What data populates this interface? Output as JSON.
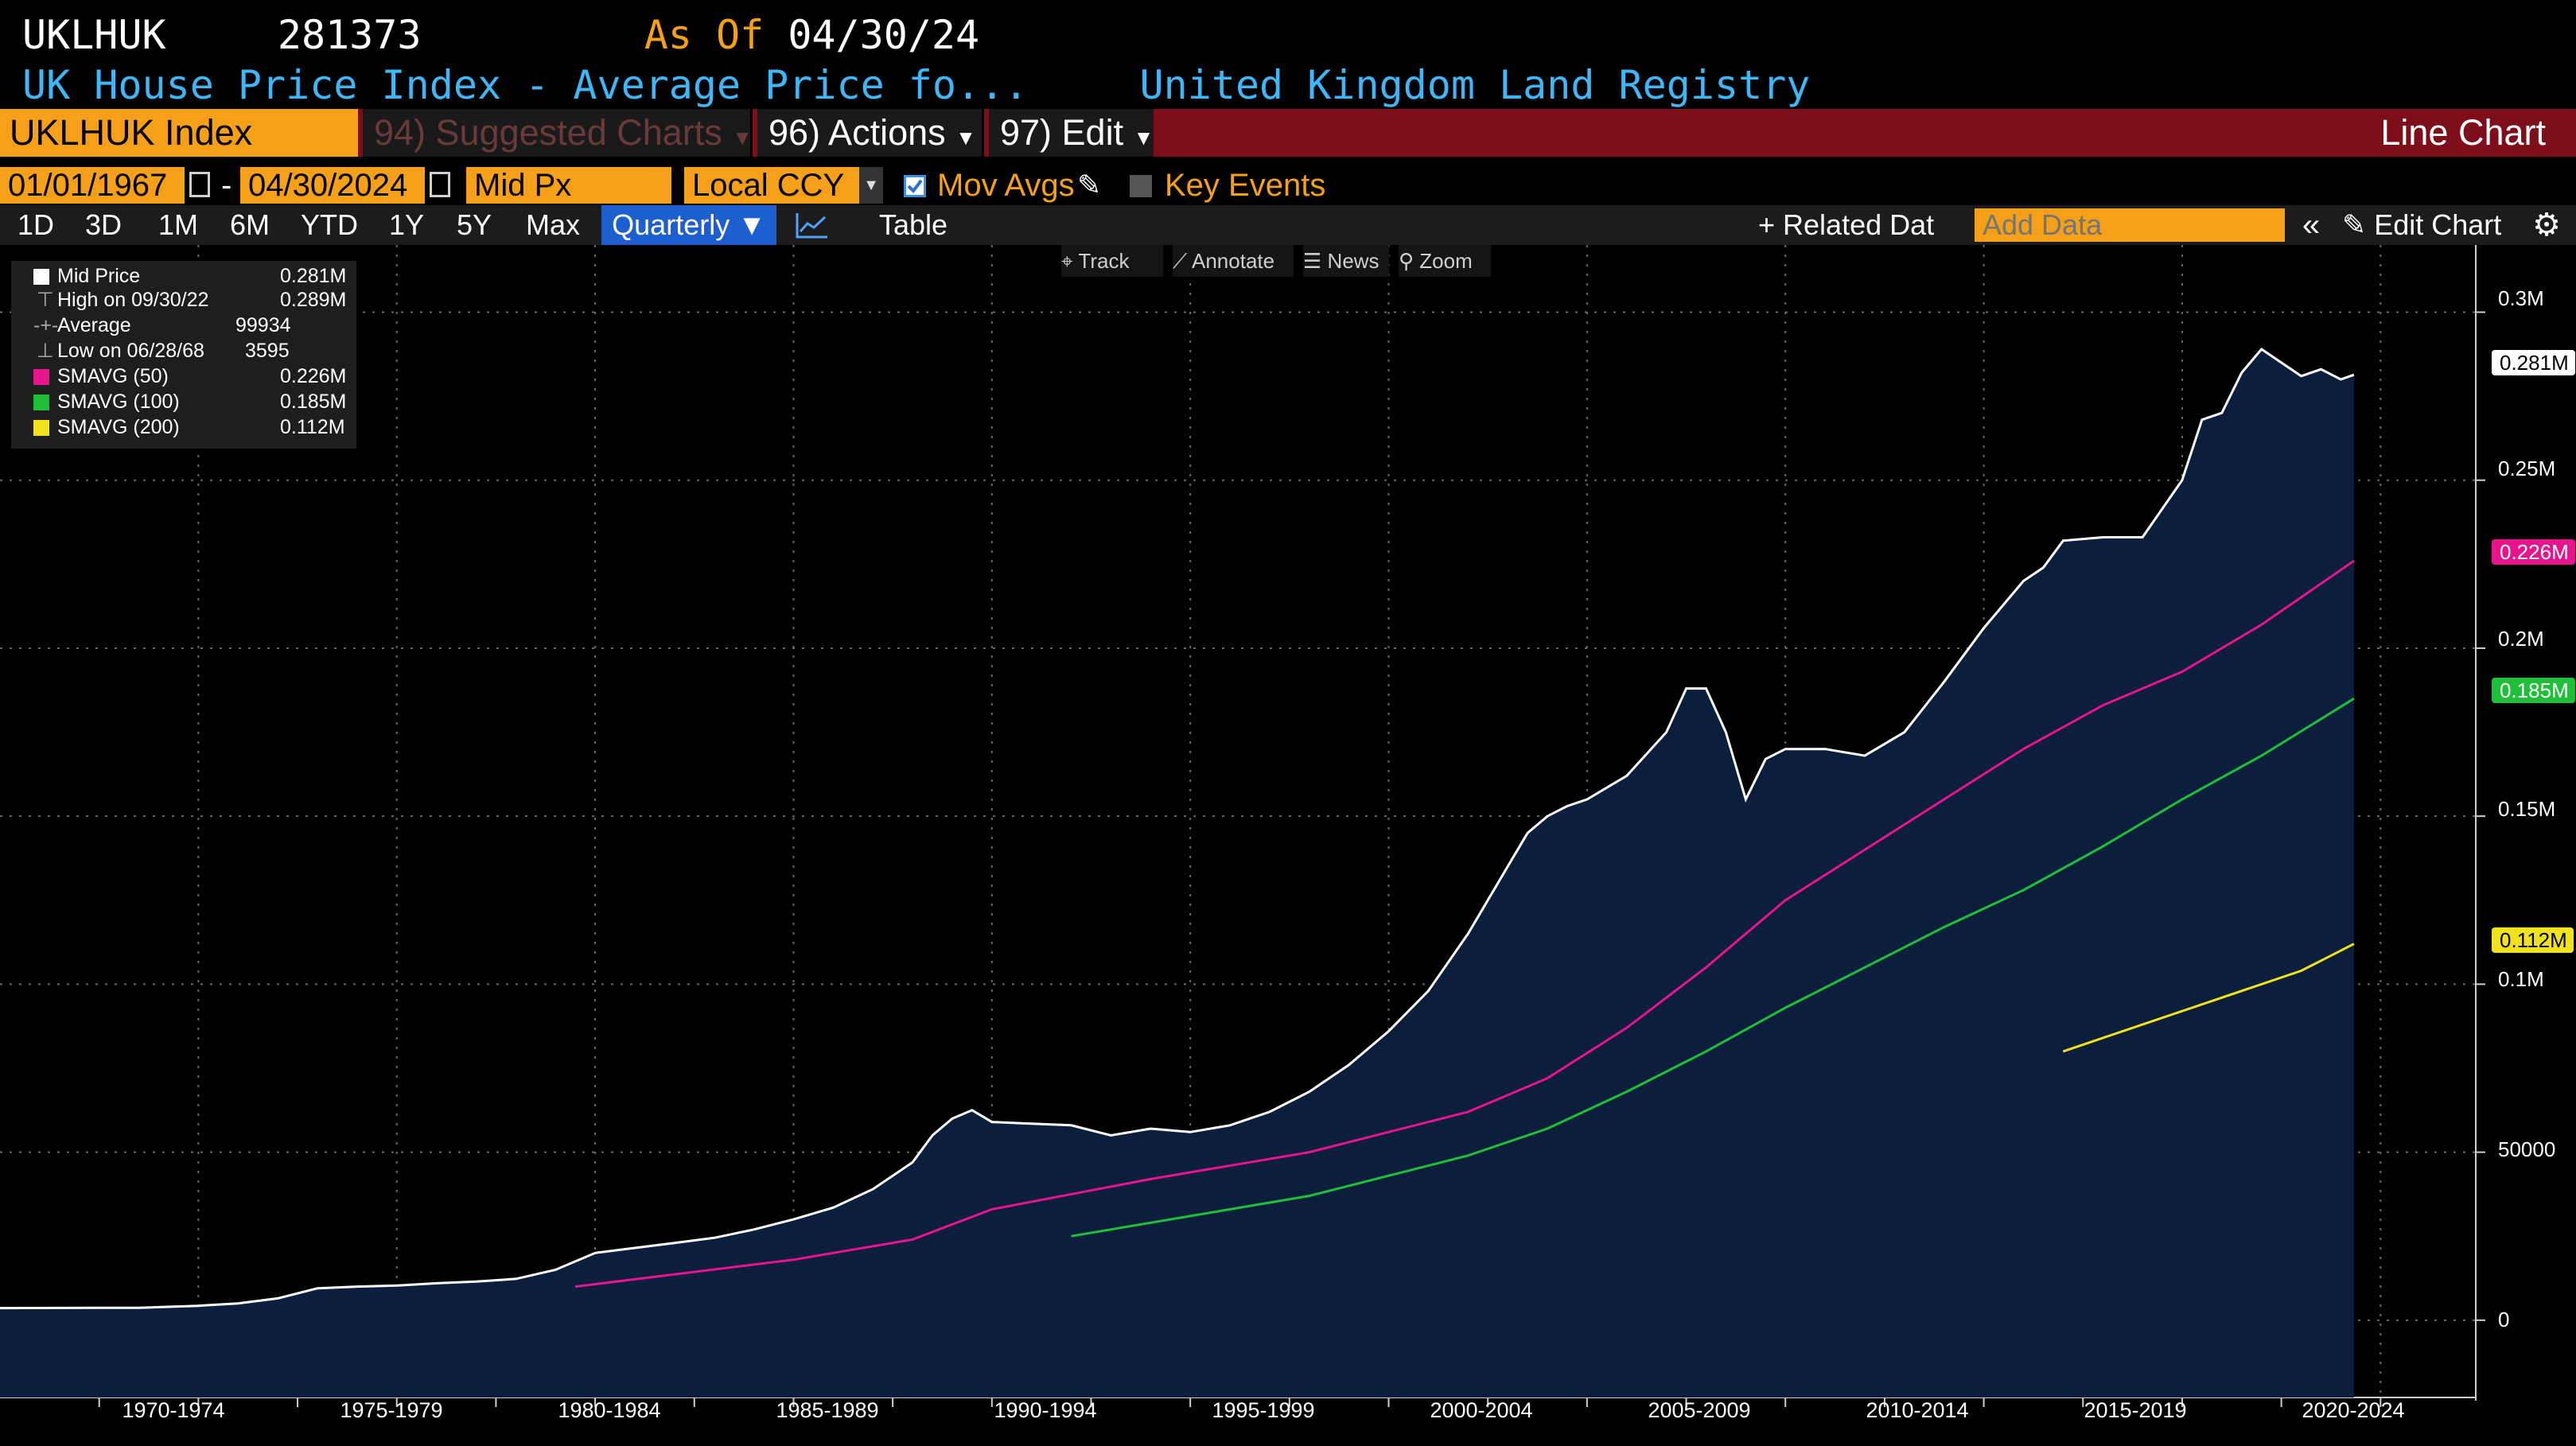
{
  "header": {
    "ticker": "UKLHUK",
    "last_value": "281373",
    "as_of_label": "As Of",
    "as_of_date": "04/30/24",
    "description": "UK House Price Index - Average Price fo...",
    "source": "United Kingdom Land Registry"
  },
  "command_bar": {
    "security": "UKLHUK Index",
    "suggested": "94) Suggested Charts",
    "actions": "96) Actions",
    "edit": "97) Edit",
    "chart_type": "Line Chart"
  },
  "controls": {
    "start_date": "01/01/1967",
    "dash": "-",
    "end_date": "04/30/2024",
    "field": "Mid Px",
    "currency": "Local CCY",
    "mov_avgs": "Mov Avgs",
    "key_events": "Key Events"
  },
  "range_bar": {
    "ranges": [
      "1D",
      "3D",
      "1M",
      "6M",
      "YTD",
      "1Y",
      "5Y",
      "Max"
    ],
    "period": "Quarterly ▼",
    "table": "Table",
    "related": "+ Related Dat",
    "add_data_placeholder": "Add Data",
    "edit_chart": "Edit Chart"
  },
  "mini_toolbar": {
    "track": "Track",
    "annotate": "Annotate",
    "news": "News",
    "zoom": "Zoom"
  },
  "legend": {
    "rows": [
      {
        "label": "Mid Price",
        "value": "0.281M"
      },
      {
        "label": "High on 09/30/22",
        "value": "0.289M"
      },
      {
        "label": "Average",
        "value": "99934"
      },
      {
        "label": "Low on 06/28/68",
        "value": "3595"
      },
      {
        "label": "SMAVG (50)",
        "value": "0.226M"
      },
      {
        "label": "SMAVG (100)",
        "value": "0.185M"
      },
      {
        "label": "SMAVG (200)",
        "value": "0.112M"
      }
    ]
  },
  "colors": {
    "price": "#ffffff",
    "area_fill": "#0b1f3d",
    "smavg50": "#e8148c",
    "smavg100": "#1fbf3a",
    "smavg200": "#f0e21c",
    "accent": "#f5a018",
    "command_bar": "#7e0f1a"
  },
  "chart_data": {
    "type": "line",
    "y_ticks": [
      "0.3M",
      "0.25M",
      "0.2M",
      "0.15M",
      "0.1M",
      "50000",
      "0"
    ],
    "x_ticks": [
      "1970-1974",
      "1975-1979",
      "1980-1984",
      "1985-1989",
      "1990-1994",
      "1995-1999",
      "2000-2004",
      "2005-2009",
      "2010-2014",
      "2015-2019",
      "2020-2024"
    ],
    "ylim": [
      -23000,
      320000
    ],
    "xlim": [
      1965.0,
      2027.4
    ],
    "grid": true,
    "legend_position": "top-left",
    "end_tags": [
      {
        "series": "price",
        "label": "0.281M",
        "value": 281373
      },
      {
        "series": "smavg50",
        "label": "0.226M",
        "value": 226000
      },
      {
        "series": "smavg100",
        "label": "0.185M",
        "value": 185000
      },
      {
        "series": "smavg200",
        "label": "0.112M",
        "value": 112000
      }
    ],
    "series": [
      {
        "key": "price",
        "name": "Mid Price",
        "x": [
          1965.0,
          1968.5,
          1970.0,
          1971.0,
          1972.0,
          1973.0,
          1974.0,
          1975.0,
          1976.0,
          1977.0,
          1978.0,
          1979.0,
          1980.0,
          1981.0,
          1982.0,
          1983.0,
          1984.0,
          1985.0,
          1986.0,
          1987.0,
          1988.0,
          1988.5,
          1989.0,
          1989.5,
          1990.0,
          1991.0,
          1992.0,
          1993.0,
          1994.0,
          1995.0,
          1996.0,
          1997.0,
          1998.0,
          1999.0,
          2000.0,
          2001.0,
          2002.0,
          2002.5,
          2003.0,
          2003.5,
          2004.0,
          2004.5,
          2005.0,
          2006.0,
          2007.0,
          2007.5,
          2008.0,
          2008.5,
          2009.0,
          2009.5,
          2010.0,
          2011.0,
          2012.0,
          2013.0,
          2014.0,
          2015.0,
          2016.0,
          2016.5,
          2017.0,
          2018.0,
          2019.0,
          2020.0,
          2020.5,
          2021.0,
          2021.5,
          2022.0,
          2022.5,
          2023.0,
          2023.5,
          2024.0,
          2024.33
        ],
        "y": [
          3595,
          3700,
          4300,
          5000,
          6500,
          9500,
          10000,
          10300,
          11000,
          11500,
          12300,
          15000,
          20000,
          21500,
          23000,
          24500,
          27000,
          30000,
          33500,
          39000,
          47000,
          55000,
          60000,
          62500,
          59000,
          58500,
          58000,
          55000,
          57000,
          56000,
          58000,
          62000,
          68000,
          76000,
          86000,
          98000,
          115000,
          125000,
          135000,
          145000,
          150000,
          153000,
          155000,
          162000,
          175000,
          188000,
          188000,
          175000,
          155000,
          167000,
          170000,
          170000,
          168000,
          175000,
          190000,
          206000,
          220000,
          224000,
          232000,
          233000,
          233000,
          250000,
          268000,
          270000,
          282000,
          289000,
          285000,
          281000,
          283000,
          280000,
          281373
        ]
      },
      {
        "key": "smavg50",
        "name": "SMAVG (50)",
        "x": [
          1979.5,
          1985.0,
          1988.0,
          1990.0,
          1994.0,
          1998.0,
          2002.0,
          2004.0,
          2006.0,
          2008.0,
          2010.0,
          2012.0,
          2014.0,
          2016.0,
          2018.0,
          2020.0,
          2022.0,
          2024.33
        ],
        "y": [
          10000,
          18000,
          24000,
          33000,
          42000,
          50000,
          62000,
          72000,
          87000,
          105000,
          125000,
          140000,
          155000,
          170000,
          183000,
          193000,
          207000,
          226000
        ]
      },
      {
        "key": "smavg100",
        "name": "SMAVG (100)",
        "x": [
          1992.0,
          1995.0,
          1998.0,
          2000.0,
          2002.0,
          2004.0,
          2006.0,
          2008.0,
          2010.0,
          2012.0,
          2014.0,
          2016.0,
          2018.0,
          2020.0,
          2022.0,
          2024.33
        ],
        "y": [
          25000,
          31000,
          37000,
          43000,
          49000,
          57000,
          68000,
          80000,
          93000,
          105000,
          117000,
          128000,
          141000,
          155000,
          168000,
          185000
        ]
      },
      {
        "key": "smavg200",
        "name": "SMAVG (200)",
        "x": [
          2017.0,
          2019.0,
          2021.0,
          2023.0,
          2024.33
        ],
        "y": [
          80000,
          88000,
          96000,
          104000,
          112000
        ]
      }
    ]
  }
}
